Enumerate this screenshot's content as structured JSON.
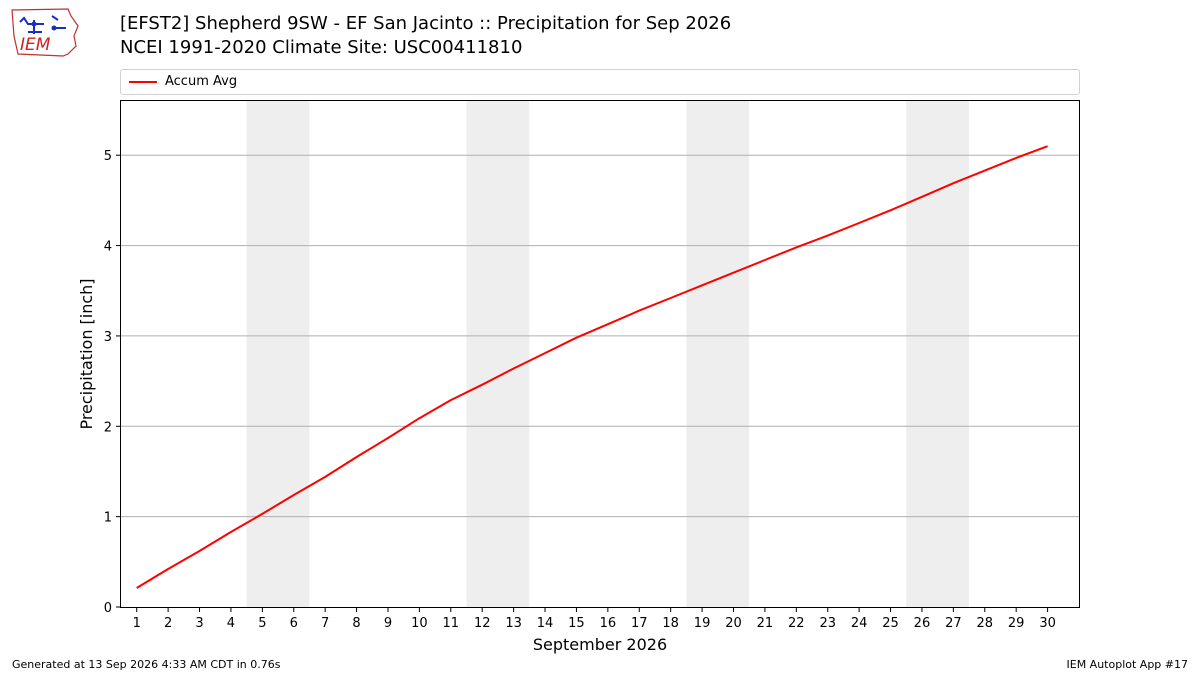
{
  "header": {
    "title_line1": "[EFST2] Shepherd 9SW - EF San Jacinto :: Precipitation for Sep 2026",
    "title_line2": "NCEI 1991-2020 Climate Site: USC00411810"
  },
  "logo": {
    "text": "IEM",
    "icon": "iem-logo-icon"
  },
  "legend": {
    "items": [
      {
        "label": "Accum Avg",
        "color": "#ff0000"
      }
    ]
  },
  "footer": {
    "generated": "Generated at 13 Sep 2026 4:33 AM CDT in 0.76s",
    "app": "IEM Autoplot App #17"
  },
  "chart_data": {
    "type": "line",
    "title": "[EFST2] Shepherd 9SW - EF San Jacinto :: Precipitation for Sep 2026",
    "subtitle": "NCEI 1991-2020 Climate Site: USC00411810",
    "xlabel": "September 2026",
    "ylabel": "Precipitation [inch]",
    "xlim": [
      0.5,
      31.0
    ],
    "ylim": [
      0,
      5.6
    ],
    "x_ticks": [
      1,
      2,
      3,
      4,
      5,
      6,
      7,
      8,
      9,
      10,
      11,
      12,
      13,
      14,
      15,
      16,
      17,
      18,
      19,
      20,
      21,
      22,
      23,
      24,
      25,
      26,
      27,
      28,
      29,
      30
    ],
    "y_ticks": [
      0,
      1,
      2,
      3,
      4,
      5
    ],
    "grid": "horizontal",
    "legend_position": "top",
    "weekend_shading": [
      [
        4.5,
        6.5
      ],
      [
        11.5,
        13.5
      ],
      [
        18.5,
        20.5
      ],
      [
        25.5,
        27.5
      ]
    ],
    "shading_color": "#eeeeee",
    "series": [
      {
        "name": "Accum Avg",
        "color": "#ff0000",
        "x": [
          1,
          2,
          3,
          4,
          5,
          6,
          7,
          8,
          9,
          10,
          11,
          12,
          13,
          14,
          15,
          16,
          17,
          18,
          19,
          20,
          21,
          22,
          23,
          24,
          25,
          26,
          27,
          28,
          29,
          30
        ],
        "values": [
          0.21,
          0.42,
          0.62,
          0.83,
          1.03,
          1.24,
          1.44,
          1.66,
          1.87,
          2.09,
          2.29,
          2.46,
          2.64,
          2.81,
          2.98,
          3.13,
          3.28,
          3.42,
          3.56,
          3.7,
          3.84,
          3.98,
          4.11,
          4.25,
          4.39,
          4.54,
          4.69,
          4.83,
          4.97,
          5.1
        ]
      }
    ]
  }
}
